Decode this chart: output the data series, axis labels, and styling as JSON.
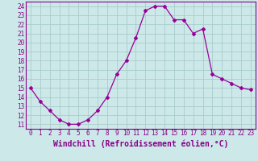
{
  "hours": [
    0,
    1,
    2,
    3,
    4,
    5,
    6,
    7,
    8,
    9,
    10,
    11,
    12,
    13,
    14,
    15,
    16,
    17,
    18,
    19,
    20,
    21,
    22,
    23
  ],
  "values": [
    15.0,
    13.5,
    12.5,
    11.5,
    11.0,
    11.0,
    11.5,
    12.5,
    14.0,
    16.5,
    18.0,
    20.5,
    23.5,
    24.0,
    24.0,
    22.5,
    22.5,
    21.0,
    21.5,
    16.5,
    16.0,
    15.5,
    15.0,
    14.8
  ],
  "line_color": "#990099",
  "marker": "D",
  "marker_size": 2,
  "bg_color": "#cce8e8",
  "grid_color": "#aacccc",
  "xlabel": "Windchill (Refroidissement éolien,°C)",
  "ylim": [
    10.5,
    24.5
  ],
  "xlim": [
    -0.5,
    23.5
  ],
  "yticks": [
    11,
    12,
    13,
    14,
    15,
    16,
    17,
    18,
    19,
    20,
    21,
    22,
    23,
    24
  ],
  "xticks": [
    0,
    1,
    2,
    3,
    4,
    5,
    6,
    7,
    8,
    9,
    10,
    11,
    12,
    13,
    14,
    15,
    16,
    17,
    18,
    19,
    20,
    21,
    22,
    23
  ],
  "tick_fontsize": 5.5,
  "xlabel_fontsize": 7.0,
  "axis_color": "#880088"
}
